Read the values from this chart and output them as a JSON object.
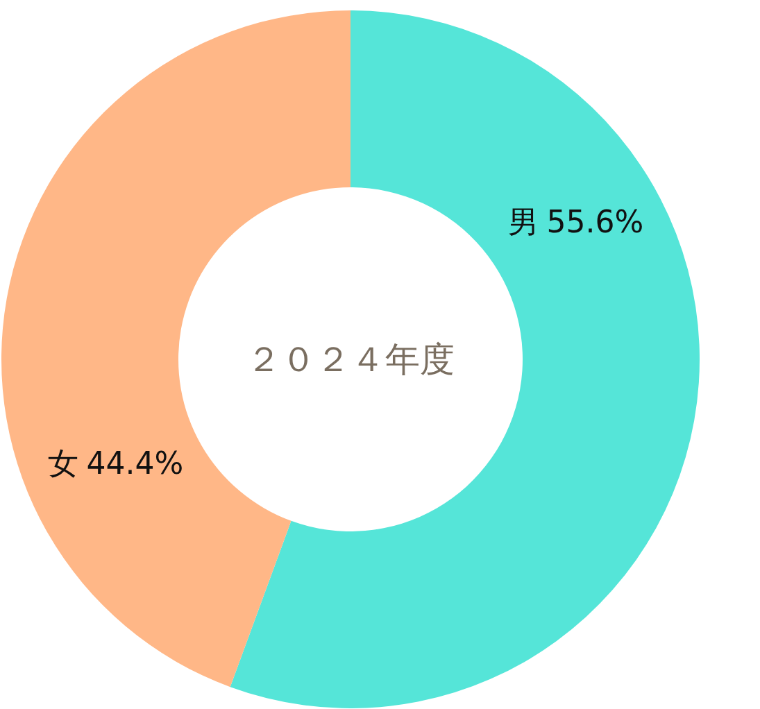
{
  "chart_data": {
    "type": "donut",
    "title": "２０２４年度",
    "categories": [
      "男",
      "女"
    ],
    "values": [
      55.6,
      44.4
    ],
    "value_labels": [
      "55.6%",
      "44.4%"
    ],
    "colors": [
      "#55e5d8",
      "#ffb787"
    ]
  }
}
